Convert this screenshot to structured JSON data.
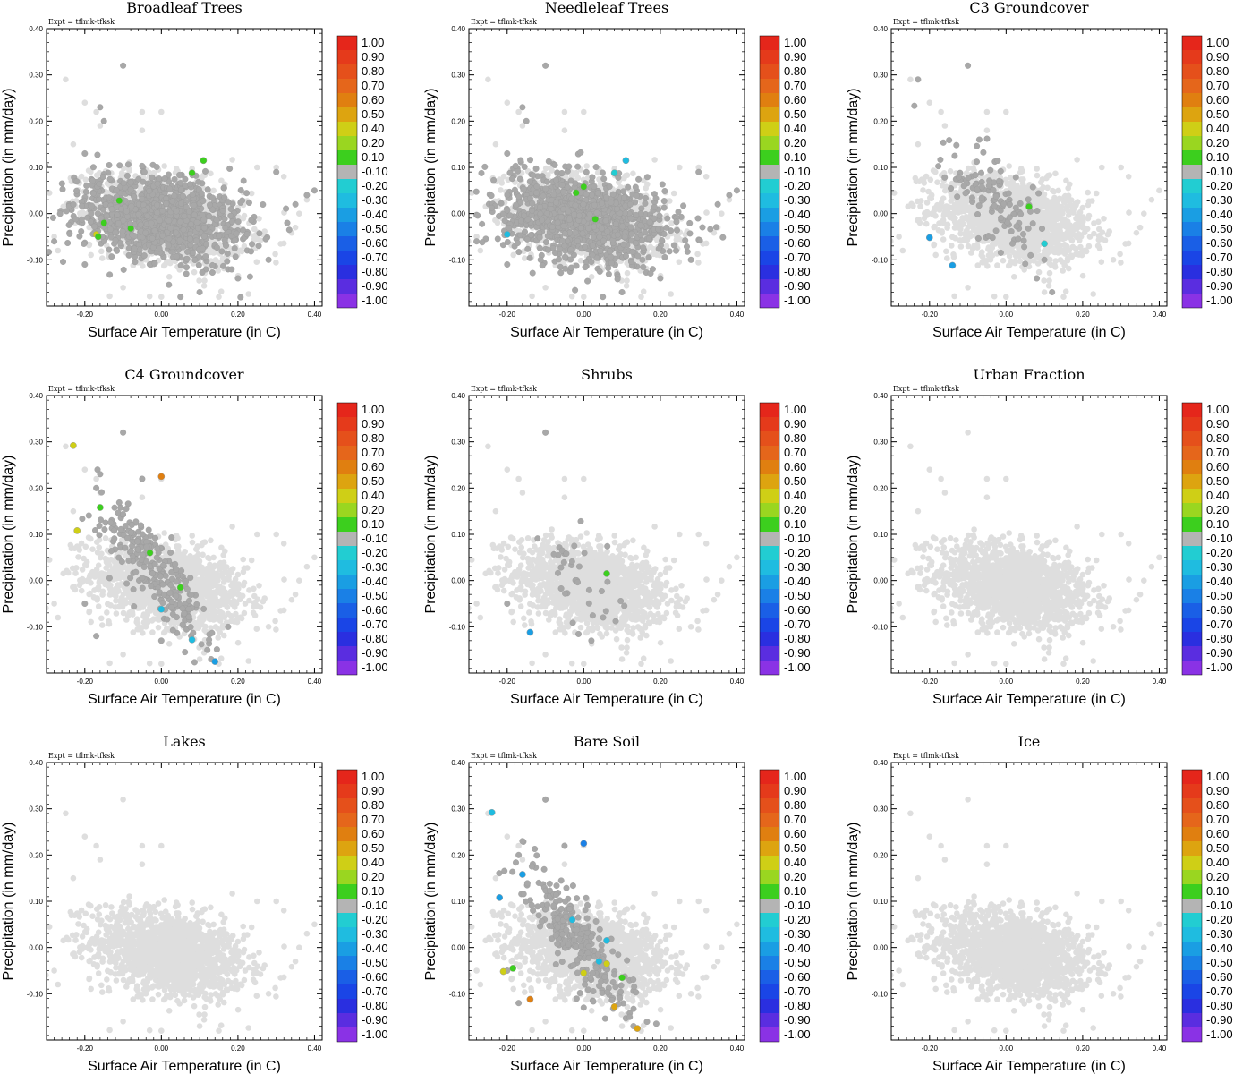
{
  "figure": {
    "xlabel": "Surface Air Temperature (in C)",
    "ylabel": "Precipitation (in mm/day)",
    "expt_label": "Expt = tflmk-tfksk"
  },
  "colorbar": {
    "labels": [
      "1.00",
      "0.90",
      "0.80",
      "0.70",
      "0.60",
      "0.50",
      "0.40",
      "0.20",
      "0.10",
      "-0.10",
      "-0.20",
      "-0.30",
      "-0.40",
      "-0.50",
      "-0.60",
      "-0.70",
      "-0.80",
      "-0.90",
      "-1.00"
    ],
    "colors": [
      "#e5261b",
      "#e53a1b",
      "#e5501b",
      "#e5661b",
      "#e07f10",
      "#dda410",
      "#cfcf16",
      "#9ad620",
      "#3ccf1e",
      "#b4b4b4",
      "#22cdd2",
      "#1fbce0",
      "#1a9ee3",
      "#1a80e6",
      "#1a5fe6",
      "#1a45e6",
      "#2a2fe0",
      "#5a2de0",
      "#8a32e5"
    ]
  },
  "chart_data": [
    {
      "type": "scatter",
      "title": "Broadleaf Trees",
      "xlim": [
        -0.3,
        0.42
      ],
      "ylim": [
        -0.2,
        0.4
      ],
      "xticks": [
        "-0.20",
        "0.00",
        "0.20",
        "0.40"
      ],
      "yticks": [
        "0.40",
        "0.30",
        "0.20",
        "0.10",
        "0.00",
        "-0.10"
      ],
      "cloud_color": "#a8a8a8",
      "cloud_extent": "wide",
      "background_color": "#dedede",
      "highlights": [
        {
          "x": 0.11,
          "y": 0.115,
          "v": 0.15
        },
        {
          "x": 0.08,
          "y": 0.088,
          "v": 0.15
        },
        {
          "x": -0.11,
          "y": 0.028,
          "v": 0.15
        },
        {
          "x": -0.15,
          "y": -0.02,
          "v": 0.15
        },
        {
          "x": -0.08,
          "y": -0.032,
          "v": 0.15
        },
        {
          "x": -0.17,
          "y": -0.045,
          "v": 0.25
        },
        {
          "x": -0.165,
          "y": -0.05,
          "v": 0.15
        }
      ]
    },
    {
      "type": "scatter",
      "title": "Needleleaf Trees",
      "xlim": [
        -0.3,
        0.42
      ],
      "ylim": [
        -0.2,
        0.4
      ],
      "xticks": [
        "-0.20",
        "0.00",
        "0.20",
        "0.40"
      ],
      "yticks": [
        "0.40",
        "0.30",
        "0.20",
        "0.10",
        "0.00",
        "-0.10"
      ],
      "cloud_color": "#a8a8a8",
      "cloud_extent": "wide",
      "background_color": "#dedede",
      "highlights": [
        {
          "x": 0.11,
          "y": 0.115,
          "v": -0.25
        },
        {
          "x": 0.08,
          "y": 0.088,
          "v": -0.15
        },
        {
          "x": 0.0,
          "y": 0.058,
          "v": 0.15
        },
        {
          "x": -0.02,
          "y": 0.045,
          "v": 0.15
        },
        {
          "x": 0.03,
          "y": -0.012,
          "v": 0.15
        },
        {
          "x": -0.2,
          "y": -0.045,
          "v": -0.25
        }
      ]
    },
    {
      "type": "scatter",
      "title": "C3 Groundcover",
      "xlim": [
        -0.3,
        0.42
      ],
      "ylim": [
        -0.2,
        0.4
      ],
      "xticks": [
        "-0.20",
        "0.00",
        "0.20",
        "0.40"
      ],
      "yticks": [
        "0.40",
        "0.30",
        "0.20",
        "0.10",
        "0.00",
        "-0.10"
      ],
      "cloud_color": "#a8a8a8",
      "cloud_extent": "c3",
      "background_color": "#dedede",
      "highlights": [
        {
          "x": 0.06,
          "y": 0.015,
          "v": 0.15
        },
        {
          "x": -0.2,
          "y": -0.052,
          "v": -0.35
        },
        {
          "x": 0.1,
          "y": -0.065,
          "v": -0.15
        },
        {
          "x": -0.14,
          "y": -0.112,
          "v": -0.35
        }
      ]
    },
    {
      "type": "scatter",
      "title": "C4 Groundcover",
      "xlim": [
        -0.3,
        0.42
      ],
      "ylim": [
        -0.2,
        0.4
      ],
      "xticks": [
        "-0.20",
        "0.00",
        "0.20",
        "0.40"
      ],
      "yticks": [
        "0.40",
        "0.30",
        "0.20",
        "0.10",
        "0.00",
        "-0.10"
      ],
      "cloud_color": "#a8a8a8",
      "cloud_extent": "c4",
      "background_color": "#dedede",
      "highlights": [
        {
          "x": -0.23,
          "y": 0.292,
          "v": 0.35
        },
        {
          "x": 0.0,
          "y": 0.225,
          "v": 0.55
        },
        {
          "x": -0.16,
          "y": 0.158,
          "v": 0.15
        },
        {
          "x": -0.22,
          "y": 0.108,
          "v": 0.35
        },
        {
          "x": -0.03,
          "y": 0.06,
          "v": 0.15
        },
        {
          "x": 0.05,
          "y": -0.015,
          "v": 0.15
        },
        {
          "x": 0.0,
          "y": -0.062,
          "v": -0.2
        },
        {
          "x": 0.08,
          "y": -0.128,
          "v": -0.25
        },
        {
          "x": 0.14,
          "y": -0.175,
          "v": -0.35
        }
      ]
    },
    {
      "type": "scatter",
      "title": "Shrubs",
      "xlim": [
        -0.3,
        0.42
      ],
      "ylim": [
        -0.2,
        0.4
      ],
      "xticks": [
        "-0.20",
        "0.00",
        "0.20",
        "0.40"
      ],
      "yticks": [
        "0.40",
        "0.30",
        "0.20",
        "0.10",
        "0.00",
        "-0.10"
      ],
      "cloud_color": "#a8a8a8",
      "cloud_extent": "shrubs",
      "background_color": "#dedede",
      "highlights": [
        {
          "x": 0.06,
          "y": 0.015,
          "v": 0.15
        },
        {
          "x": -0.14,
          "y": -0.112,
          "v": -0.35
        }
      ]
    },
    {
      "type": "scatter",
      "title": "Urban Fraction",
      "xlim": [
        -0.3,
        0.42
      ],
      "ylim": [
        -0.2,
        0.4
      ],
      "xticks": [
        "-0.20",
        "0.00",
        "0.20",
        "0.40"
      ],
      "yticks": [
        "0.40",
        "0.30",
        "0.20",
        "0.10",
        "0.00",
        "-0.10"
      ],
      "cloud_color": "#a8a8a8",
      "cloud_extent": "none",
      "background_color": "#dedede",
      "highlights": []
    },
    {
      "type": "scatter",
      "title": "Lakes",
      "xlim": [
        -0.3,
        0.42
      ],
      "ylim": [
        -0.2,
        0.4
      ],
      "xticks": [
        "-0.20",
        "0.00",
        "0.20",
        "0.40"
      ],
      "yticks": [
        "0.40",
        "0.30",
        "0.20",
        "0.10",
        "0.00",
        "-0.10"
      ],
      "cloud_color": "#a8a8a8",
      "cloud_extent": "none",
      "background_color": "#dedede",
      "highlights": []
    },
    {
      "type": "scatter",
      "title": "Bare Soil",
      "xlim": [
        -0.3,
        0.42
      ],
      "ylim": [
        -0.2,
        0.4
      ],
      "xticks": [
        "-0.20",
        "0.00",
        "0.20",
        "0.40"
      ],
      "yticks": [
        "0.40",
        "0.30",
        "0.20",
        "0.10",
        "0.00",
        "-0.10"
      ],
      "cloud_color": "#a8a8a8",
      "cloud_extent": "c4",
      "background_color": "#dedede",
      "highlights": [
        {
          "x": -0.24,
          "y": 0.292,
          "v": -0.25
        },
        {
          "x": 0.0,
          "y": 0.225,
          "v": -0.45
        },
        {
          "x": -0.16,
          "y": 0.158,
          "v": -0.3
        },
        {
          "x": -0.22,
          "y": 0.108,
          "v": -0.3
        },
        {
          "x": -0.03,
          "y": 0.06,
          "v": -0.25
        },
        {
          "x": 0.06,
          "y": 0.015,
          "v": -0.2
        },
        {
          "x": 0.04,
          "y": -0.03,
          "v": -0.2
        },
        {
          "x": -0.21,
          "y": -0.052,
          "v": 0.25
        },
        {
          "x": -0.185,
          "y": -0.045,
          "v": 0.15
        },
        {
          "x": 0.0,
          "y": -0.055,
          "v": 0.35
        },
        {
          "x": 0.06,
          "y": -0.035,
          "v": 0.3
        },
        {
          "x": 0.1,
          "y": -0.065,
          "v": 0.15
        },
        {
          "x": -0.14,
          "y": -0.112,
          "v": 0.55
        },
        {
          "x": 0.08,
          "y": -0.128,
          "v": 0.45
        },
        {
          "x": 0.14,
          "y": -0.175,
          "v": 0.45
        }
      ]
    },
    {
      "type": "scatter",
      "title": "Ice",
      "xlim": [
        -0.3,
        0.42
      ],
      "ylim": [
        -0.2,
        0.4
      ],
      "xticks": [
        "-0.20",
        "0.00",
        "0.20",
        "0.40"
      ],
      "yticks": [
        "0.40",
        "0.30",
        "0.20",
        "0.10",
        "0.00",
        "-0.10"
      ],
      "cloud_color": "#a8a8a8",
      "cloud_extent": "none",
      "background_color": "#dedede",
      "highlights": []
    }
  ]
}
